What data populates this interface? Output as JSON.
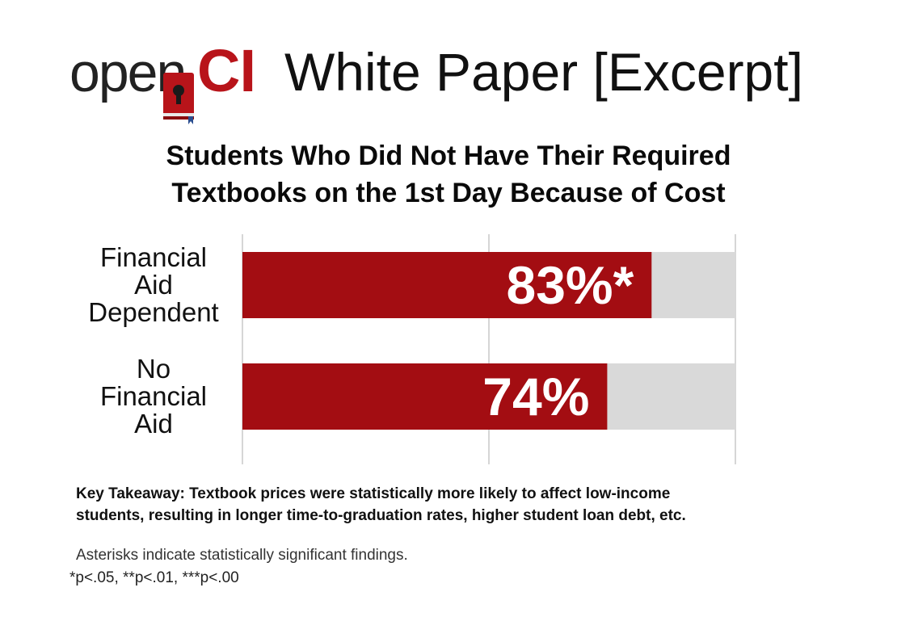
{
  "header": {
    "logo_open": "open",
    "logo_ci": "CI",
    "title": "White Paper [Excerpt]"
  },
  "colors": {
    "bar": "#a30d12",
    "track": "#d9d9d9",
    "grid": "#d6d6d6",
    "logo_red": "#b8141a"
  },
  "chart_data": {
    "type": "bar",
    "orientation": "horizontal",
    "title_lines": [
      "Students Who Did Not Have Their Required",
      "Textbooks on the 1st Day Because of Cost"
    ],
    "categories": [
      [
        "Financial",
        "Aid",
        "Dependent"
      ],
      [
        "No",
        "Financial",
        "Aid"
      ]
    ],
    "values": [
      83,
      74
    ],
    "labels": [
      "83%*",
      "74%"
    ],
    "xlim": [
      0,
      100
    ],
    "grid": true,
    "gridlines_at": [
      0,
      50,
      100
    ]
  },
  "takeaway": {
    "line1": "Key Takeaway: Textbook prices were statistically more likely to affect low-income",
    "line2": "students, resulting in longer time-to-graduation rates, higher student loan debt, etc."
  },
  "footnote": {
    "line1": "Asterisks indicate statistically significant findings.",
    "line2": "*p<.05, **p<.01, ***p<.00"
  }
}
